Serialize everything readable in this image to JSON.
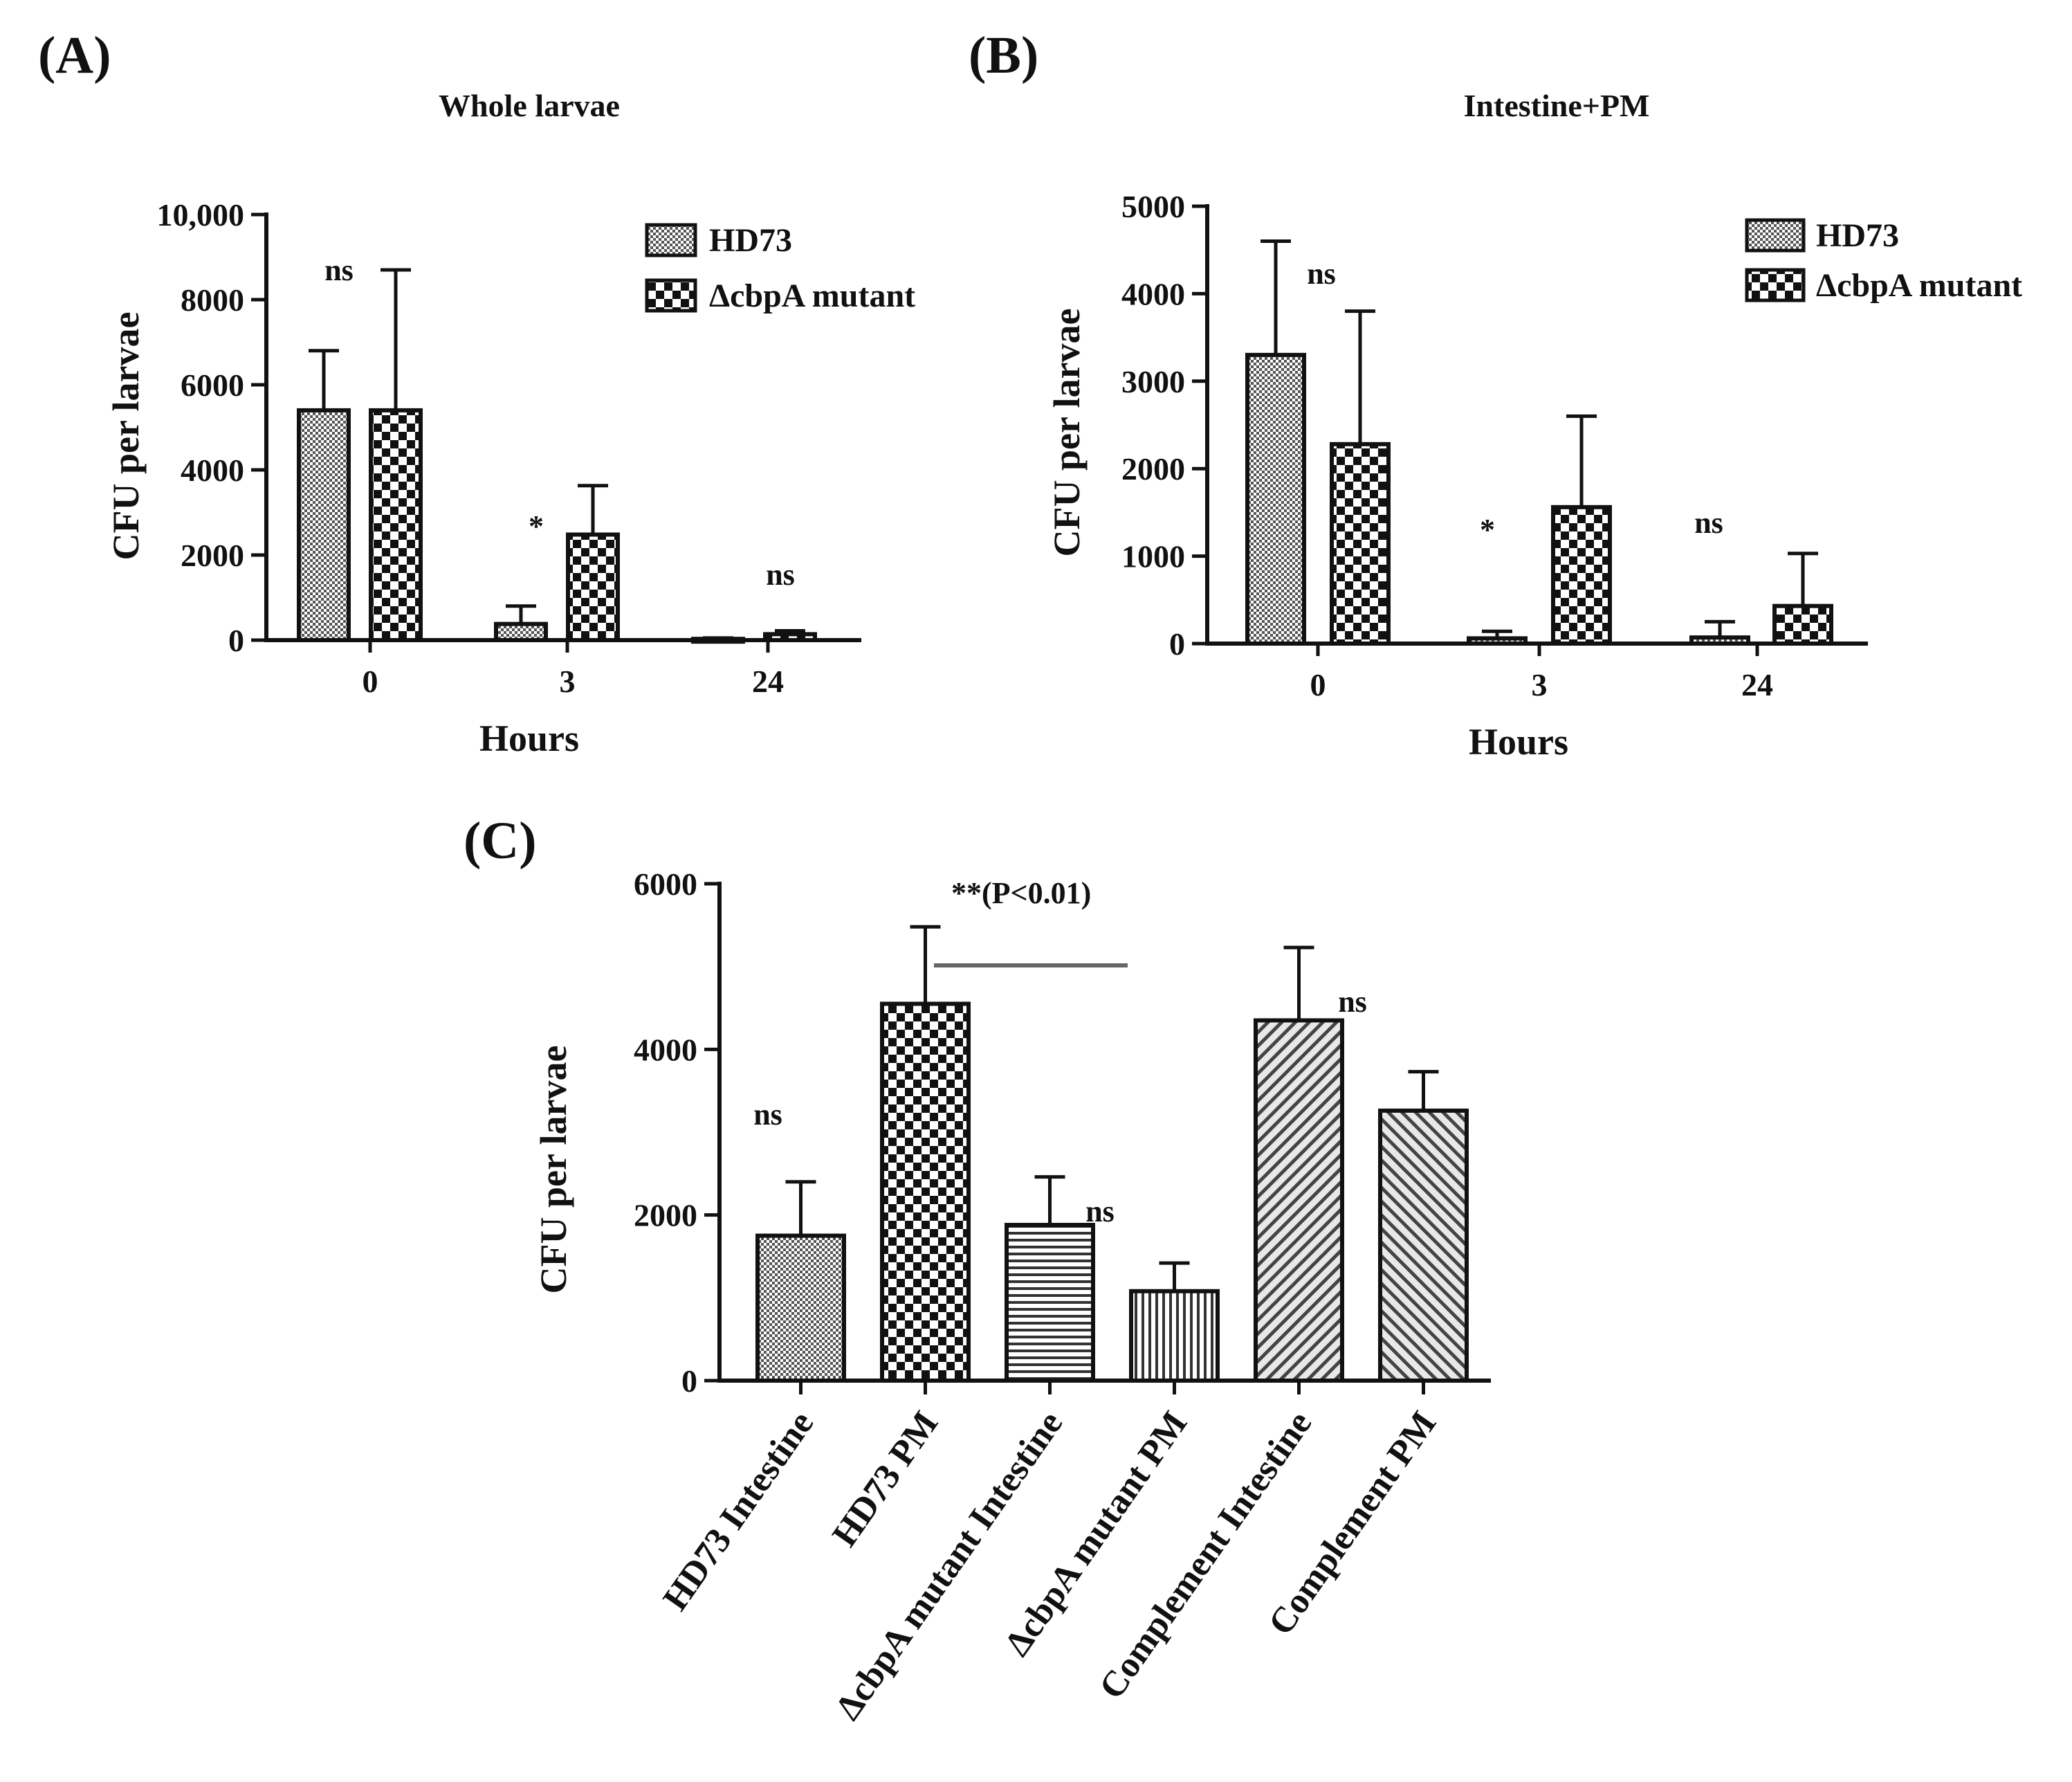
{
  "chart_data": [
    {
      "panel": "(A)",
      "type": "bar",
      "title": "Whole larvae",
      "xlabel": "Hours",
      "ylabel": "CFU per larvae",
      "categories": [
        "0",
        "3",
        "24"
      ],
      "ylim": [
        0,
        10000
      ],
      "yticks": [
        0,
        2000,
        4000,
        6000,
        8000,
        10000
      ],
      "ytick_labels": [
        "0",
        "2000",
        "4000",
        "6000",
        "8000",
        "10,000"
      ],
      "series": [
        {
          "name": "HD73",
          "pattern": "fine",
          "values": [
            5400,
            380,
            30
          ],
          "errors": [
            1400,
            420,
            20
          ]
        },
        {
          "name": "ΔcbpA mutant",
          "pattern": "checker",
          "values": [
            5400,
            2480,
            140
          ],
          "errors": [
            3300,
            1150,
            80
          ]
        }
      ],
      "annotations": [
        "ns",
        "*",
        "ns"
      ],
      "legend": "top-right"
    },
    {
      "panel": "(B)",
      "type": "bar",
      "title": "Intestine+PM",
      "xlabel": "Hours",
      "ylabel": "CFU per larvae",
      "categories": [
        "0",
        "3",
        "24"
      ],
      "ylim": [
        0,
        5000
      ],
      "yticks": [
        0,
        1000,
        2000,
        3000,
        4000,
        5000
      ],
      "ytick_labels": [
        "0",
        "1000",
        "2000",
        "3000",
        "4000",
        "5000"
      ],
      "series": [
        {
          "name": "HD73",
          "pattern": "fine",
          "values": [
            3300,
            60,
            70
          ],
          "errors": [
            1300,
            80,
            180
          ]
        },
        {
          "name": "ΔcbpA mutant",
          "pattern": "checker",
          "values": [
            2280,
            1560,
            430
          ],
          "errors": [
            1520,
            1040,
            600
          ]
        }
      ],
      "annotations": [
        "ns",
        "*",
        "ns"
      ],
      "legend": "top-right"
    },
    {
      "panel": "(C)",
      "type": "bar",
      "title": "",
      "xlabel": "",
      "ylabel": "CFU per larvae",
      "ylim": [
        0,
        6000
      ],
      "yticks": [
        0,
        2000,
        4000,
        6000
      ],
      "ytick_labels": [
        "0",
        "2000",
        "4000",
        "6000"
      ],
      "categories": [
        "HD73 Intestine",
        "HD73 PM",
        "ΔcbpA mutant Intestine",
        "ΔcbpA mutant PM",
        "Complement Intestine",
        "Complement PM"
      ],
      "values": [
        1750,
        4550,
        1880,
        1080,
        4350,
        3260
      ],
      "errors": [
        650,
        930,
        580,
        340,
        880,
        470
      ],
      "patterns": [
        "fine",
        "checker",
        "hlines",
        "vlines",
        "diag-back",
        "diag-fwd"
      ],
      "annotations": {
        "ns_labels": [
          "ns",
          "ns",
          "ns"
        ],
        "significance": "**(P<0.01)"
      }
    }
  ]
}
